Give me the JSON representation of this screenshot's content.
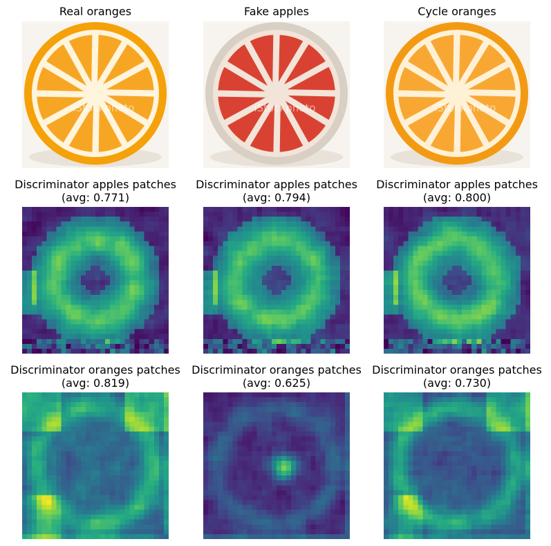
{
  "panels": [
    {
      "kind": "photo",
      "title_lines": [
        "Real oranges"
      ],
      "image": "real-orange-photo",
      "colors": {
        "peel": "#f5a10a",
        "flesh": "#f7a21b",
        "rind": "#fff4dc"
      }
    },
    {
      "kind": "photo",
      "title_lines": [
        "Fake apples"
      ],
      "image": "fake-apple-photo",
      "colors": {
        "peel": "#d8d0c4",
        "flesh": "#d83a2a",
        "rind": "#f2e4d8"
      }
    },
    {
      "kind": "photo",
      "title_lines": [
        "Cycle oranges"
      ],
      "image": "cycle-orange-photo",
      "colors": {
        "peel": "#f39a14",
        "flesh": "#f8a52a",
        "rind": "#fff1d6"
      }
    },
    {
      "kind": "heatmap",
      "title_lines": [
        "Discriminator apples patches",
        "(avg: 0.771)"
      ],
      "avg": 0.771,
      "seed": 11,
      "colormap": "viridis"
    },
    {
      "kind": "heatmap",
      "title_lines": [
        "Discriminator apples patches",
        "(avg: 0.794)"
      ],
      "avg": 0.794,
      "seed": 23,
      "colormap": "viridis"
    },
    {
      "kind": "heatmap",
      "title_lines": [
        "Discriminator apples patches",
        "(avg: 0.800)"
      ],
      "avg": 0.8,
      "seed": 37,
      "colormap": "viridis"
    },
    {
      "kind": "heatmap",
      "title_lines": [
        "Discriminator oranges patches",
        "(avg: 0.819)"
      ],
      "avg": 0.819,
      "seed": 41,
      "colormap": "viridis"
    },
    {
      "kind": "heatmap",
      "title_lines": [
        "Discriminator oranges patches",
        "(avg: 0.625)"
      ],
      "avg": 0.625,
      "seed": 53,
      "colormap": "viridis"
    },
    {
      "kind": "heatmap",
      "title_lines": [
        "Discriminator oranges patches",
        "(avg: 0.730)"
      ],
      "avg": 0.73,
      "seed": 67,
      "colormap": "viridis"
    }
  ],
  "watermark": "iStockphoto"
}
